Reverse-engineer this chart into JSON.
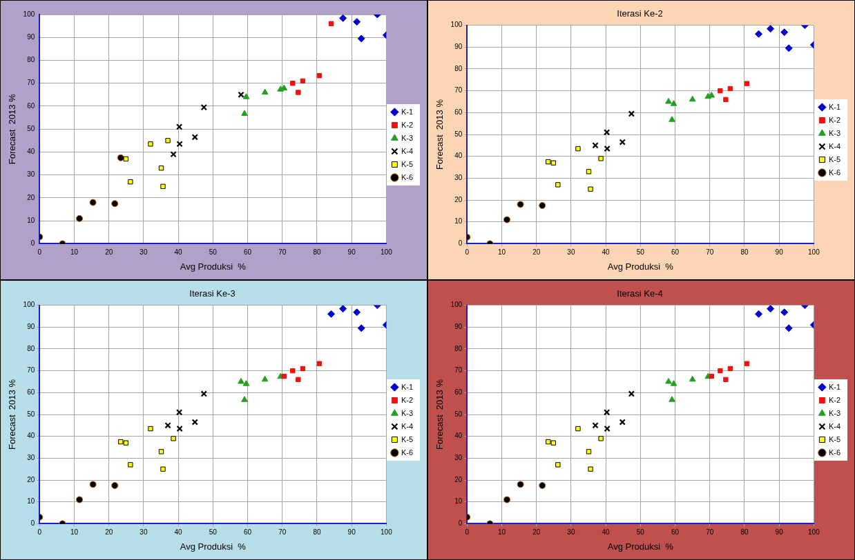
{
  "chart_data": [
    {
      "type": "scatter",
      "xlabel": "Avg Produksi  %",
      "ylabel": "Forecast  2013 %",
      "xlim": [
        0,
        100
      ],
      "ylim": [
        0,
        100
      ],
      "xticks": [
        0,
        10,
        20,
        30,
        40,
        50,
        60,
        70,
        80,
        90,
        100
      ],
      "yticks": [
        0,
        10,
        20,
        30,
        40,
        50,
        60,
        70,
        80,
        90,
        100
      ],
      "grid": true,
      "legend": "right",
      "series": [
        {
          "name": "K-1",
          "color": "#0000cc",
          "marker": "diamond",
          "x": [
            87.5,
            91.5,
            92.8,
            97.4,
            100
          ],
          "values": [
            98.4,
            96.8,
            89.5,
            100,
            91
          ]
        },
        {
          "name": "K-2",
          "color": "#ee1111",
          "marker": "square",
          "x": [
            73,
            74.6,
            75.9,
            80.7,
            84.1
          ],
          "values": [
            70,
            66,
            71,
            73.3,
            96
          ]
        },
        {
          "name": "K-3",
          "color": "#22a022",
          "marker": "triangle",
          "x": [
            59.1,
            59.6,
            65,
            69.5,
            70.5
          ],
          "values": [
            56.7,
            64,
            66,
            67.3,
            67.8
          ]
        },
        {
          "name": "K-4",
          "color": "#000000",
          "marker": "cross",
          "x": [
            38.6,
            40.3,
            40.4,
            44.8,
            47.4,
            58.1
          ],
          "values": [
            39,
            51,
            43.5,
            46.5,
            59.5,
            65
          ]
        },
        {
          "name": "K-5",
          "color": "#ffff00",
          "marker": "square",
          "x": [
            24.9,
            26.2,
            32,
            35.1,
            35.6,
            37
          ],
          "values": [
            37,
            27,
            43.5,
            33,
            25,
            45
          ]
        },
        {
          "name": "K-6",
          "color": "#000000",
          "marker": "circle",
          "x": [
            0,
            6.6,
            11.5,
            15.4,
            21.7,
            23.4
          ],
          "values": [
            3,
            0,
            11,
            18,
            17.5,
            37.5
          ]
        }
      ]
    },
    {
      "type": "scatter",
      "title": "Iterasi Ke-2",
      "xlabel": "Avg Produksi  %",
      "ylabel": "Forecast  2013 %",
      "xlim": [
        0,
        100
      ],
      "ylim": [
        0,
        100
      ],
      "xticks": [
        0,
        10,
        20,
        30,
        40,
        50,
        60,
        70,
        80,
        90,
        100
      ],
      "yticks": [
        0,
        10,
        20,
        30,
        40,
        50,
        60,
        70,
        80,
        90,
        100
      ],
      "grid": true,
      "legend": "right",
      "series": [
        {
          "name": "K-1",
          "color": "#0000cc",
          "marker": "diamond",
          "x": [
            84.1,
            87.5,
            91.5,
            92.8,
            97.4,
            100
          ],
          "values": [
            96,
            98.4,
            96.8,
            89.5,
            100,
            91
          ]
        },
        {
          "name": "K-2",
          "color": "#ee1111",
          "marker": "square",
          "x": [
            73,
            74.6,
            75.9,
            80.7
          ],
          "values": [
            70,
            66,
            71,
            73.3
          ]
        },
        {
          "name": "K-3",
          "color": "#22a022",
          "marker": "triangle",
          "x": [
            58.1,
            59.1,
            59.6,
            65,
            69.5,
            70.5
          ],
          "values": [
            65,
            56.7,
            64,
            66,
            67.3,
            67.8
          ]
        },
        {
          "name": "K-4",
          "color": "#000000",
          "marker": "cross",
          "x": [
            37,
            40.3,
            40.4,
            44.8,
            47.4
          ],
          "values": [
            45,
            51,
            43.5,
            46.5,
            59.5
          ]
        },
        {
          "name": "K-5",
          "color": "#ffff00",
          "marker": "square",
          "x": [
            23.4,
            24.9,
            26.2,
            32,
            35.1,
            35.6,
            38.6
          ],
          "values": [
            37.5,
            37,
            27,
            43.5,
            33,
            25,
            39
          ]
        },
        {
          "name": "K-6",
          "color": "#000000",
          "marker": "circle",
          "x": [
            0,
            6.6,
            11.5,
            15.4,
            21.7
          ],
          "values": [
            3,
            0,
            11,
            18,
            17.5
          ]
        }
      ]
    },
    {
      "type": "scatter",
      "title": "Iterasi Ke-3",
      "xlabel": "Avg Produksi  %",
      "ylabel": "Forecast  2013 %",
      "xlim": [
        0,
        100
      ],
      "ylim": [
        0,
        100
      ],
      "xticks": [
        0,
        10,
        20,
        30,
        40,
        50,
        60,
        70,
        80,
        90,
        100
      ],
      "yticks": [
        0,
        10,
        20,
        30,
        40,
        50,
        60,
        70,
        80,
        90,
        100
      ],
      "grid": true,
      "legend": "right",
      "series": [
        {
          "name": "K-1",
          "color": "#0000cc",
          "marker": "diamond",
          "x": [
            84.1,
            87.5,
            91.5,
            92.8,
            97.4,
            100
          ],
          "values": [
            96,
            98.4,
            96.8,
            89.5,
            100,
            91
          ]
        },
        {
          "name": "K-2",
          "color": "#ee1111",
          "marker": "square",
          "x": [
            70.5,
            73,
            74.6,
            75.9,
            80.7
          ],
          "values": [
            67.5,
            70,
            66,
            71,
            73.3
          ]
        },
        {
          "name": "K-3",
          "color": "#22a022",
          "marker": "triangle",
          "x": [
            58.1,
            59.1,
            59.6,
            65,
            69.5
          ],
          "values": [
            65,
            56.7,
            64,
            66,
            67.3
          ]
        },
        {
          "name": "K-4",
          "color": "#000000",
          "marker": "cross",
          "x": [
            37,
            40.3,
            40.4,
            44.8,
            47.4
          ],
          "values": [
            45,
            51,
            43.5,
            46.5,
            59.5
          ]
        },
        {
          "name": "K-5",
          "color": "#ffff00",
          "marker": "square",
          "x": [
            23.4,
            24.9,
            26.2,
            32,
            35.1,
            35.6,
            38.6
          ],
          "values": [
            37.5,
            37,
            27,
            43.5,
            33,
            25,
            39
          ]
        },
        {
          "name": "K-6",
          "color": "#000000",
          "marker": "circle",
          "x": [
            0,
            6.6,
            11.5,
            15.4,
            21.7
          ],
          "values": [
            3,
            0,
            11,
            18,
            17.5
          ]
        }
      ]
    },
    {
      "type": "scatter",
      "title": "Iterasi Ke-4",
      "xlabel": "Avg Produksi  %",
      "ylabel": "Forecast  2013 %",
      "xlim": [
        0,
        100
      ],
      "ylim": [
        0,
        100
      ],
      "xticks": [
        0,
        10,
        20,
        30,
        40,
        50,
        60,
        70,
        80,
        90,
        100
      ],
      "yticks": [
        0,
        10,
        20,
        30,
        40,
        50,
        60,
        70,
        80,
        90,
        100
      ],
      "grid": true,
      "legend": "right",
      "series": [
        {
          "name": "K-1",
          "color": "#0000cc",
          "marker": "diamond",
          "x": [
            84.1,
            87.5,
            91.5,
            92.8,
            97.4,
            100
          ],
          "values": [
            96,
            98.4,
            96.8,
            89.5,
            100,
            91
          ]
        },
        {
          "name": "K-2",
          "color": "#ee1111",
          "marker": "square",
          "x": [
            70.5,
            73,
            74.6,
            75.9,
            80.7
          ],
          "values": [
            67.5,
            70,
            66,
            71,
            73.3
          ]
        },
        {
          "name": "K-3",
          "color": "#22a022",
          "marker": "triangle",
          "x": [
            58.1,
            59.1,
            59.6,
            65,
            69.5
          ],
          "values": [
            65,
            56.7,
            64,
            66,
            67.3
          ]
        },
        {
          "name": "K-4",
          "color": "#000000",
          "marker": "cross",
          "x": [
            37,
            40.3,
            40.4,
            44.8,
            47.4
          ],
          "values": [
            45,
            51,
            43.5,
            46.5,
            59.5
          ]
        },
        {
          "name": "K-5",
          "color": "#ffff00",
          "marker": "square",
          "x": [
            23.4,
            24.9,
            26.2,
            32,
            35.1,
            35.6,
            38.6
          ],
          "values": [
            37.5,
            37,
            27,
            43.5,
            33,
            25,
            39
          ]
        },
        {
          "name": "K-6",
          "color": "#000000",
          "marker": "circle",
          "x": [
            0,
            6.6,
            11.5,
            15.4,
            21.7
          ],
          "values": [
            3,
            0,
            11,
            18,
            17.5
          ]
        }
      ]
    }
  ]
}
